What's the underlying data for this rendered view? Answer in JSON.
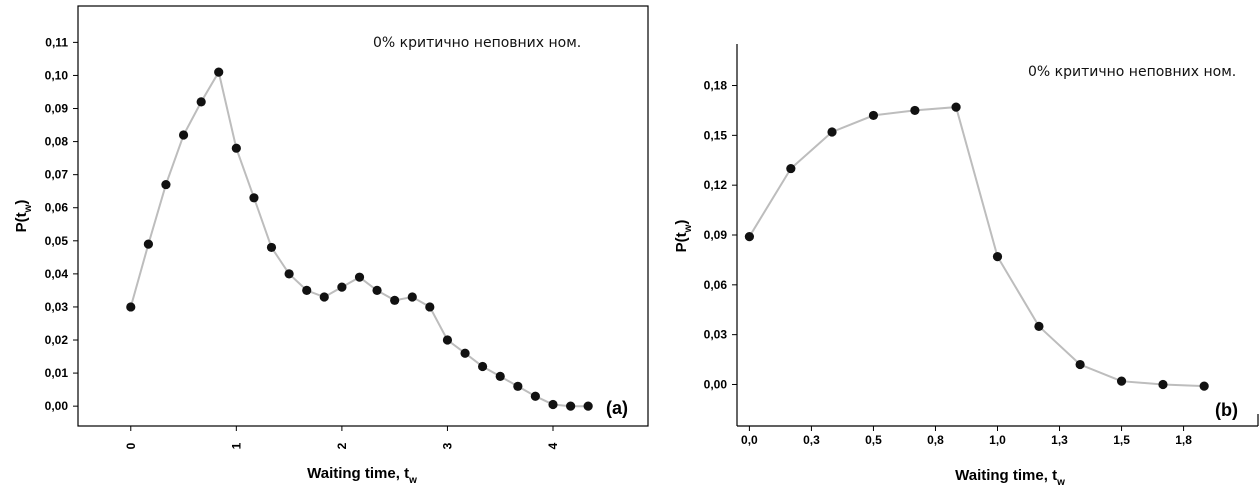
{
  "chart_data": [
    {
      "type": "line",
      "panel_label": "(a)",
      "annotation": "0% критично неповних ном.",
      "xlabel_main": "Waiting time, t",
      "xlabel_sub": "w",
      "ylabel_main": "P(t",
      "ylabel_sub": "w",
      "ylabel_close": ")",
      "xlim": [
        -0.5,
        4.9
      ],
      "ylim": [
        -0.006,
        0.121
      ],
      "xticks": [
        0,
        1,
        2,
        3,
        4
      ],
      "xtick_labels": [
        "0",
        "1",
        "2",
        "3",
        "4"
      ],
      "yticks": [
        0.0,
        0.01,
        0.02,
        0.03,
        0.04,
        0.05,
        0.06,
        0.07,
        0.08,
        0.09,
        0.1,
        0.11
      ],
      "ytick_labels": [
        "0,00",
        "0,01",
        "0,02",
        "0,03",
        "0,04",
        "0,05",
        "0,06",
        "0,07",
        "0,08",
        "0,09",
        "0,10",
        "0,11"
      ],
      "series": [
        {
          "x": [
            0,
            0.167,
            0.333,
            0.5,
            0.667,
            0.833,
            1.0,
            1.167,
            1.333,
            1.5,
            1.667,
            1.833,
            2.0,
            2.167,
            2.333,
            2.5,
            2.667,
            2.833,
            3.0,
            3.167,
            3.333,
            3.5,
            3.667,
            3.833,
            4.0,
            4.167,
            4.333
          ],
          "y": [
            0.03,
            0.049,
            0.067,
            0.082,
            0.092,
            0.101,
            0.078,
            0.063,
            0.048,
            0.04,
            0.035,
            0.033,
            0.036,
            0.039,
            0.035,
            0.032,
            0.033,
            0.03,
            0.02,
            0.016,
            0.012,
            0.009,
            0.006,
            0.003,
            0.0005,
            0.0,
            0.0
          ]
        }
      ],
      "colors": {
        "line": "#bdbdbd",
        "marker": "#111111"
      }
    },
    {
      "type": "line",
      "panel_label": "(b)",
      "annotation": "0% критично неповних ном.",
      "xlabel_main": "Waiting time, t",
      "xlabel_sub": "w",
      "ylabel_main": "P(t",
      "ylabel_sub": "w",
      "ylabel_close": ")",
      "xlim": [
        -0.05,
        2.05
      ],
      "ylim": [
        -0.025,
        0.205
      ],
      "xticks": [
        0.0,
        0.25,
        0.5,
        0.75,
        1.0,
        1.25,
        1.5,
        1.75
      ],
      "xtick_labels": [
        "0,0",
        "0,3",
        "0,5",
        "0,8",
        "1,0",
        "1,3",
        "1,5",
        "1,8"
      ],
      "yticks": [
        0.0,
        0.03,
        0.06,
        0.09,
        0.12,
        0.15,
        0.18
      ],
      "ytick_labels": [
        "0,00",
        "0,03",
        "0,06",
        "0,09",
        "0,12",
        "0,15",
        "0,18"
      ],
      "series": [
        {
          "x": [
            0.0,
            0.167,
            0.333,
            0.5,
            0.667,
            0.833,
            1.0,
            1.167,
            1.333,
            1.5,
            1.667,
            1.833
          ],
          "y": [
            0.089,
            0.13,
            0.152,
            0.162,
            0.165,
            0.167,
            0.077,
            0.035,
            0.012,
            0.002,
            0.0,
            -0.001
          ]
        }
      ],
      "colors": {
        "line": "#bdbdbd",
        "marker": "#111111"
      }
    }
  ]
}
